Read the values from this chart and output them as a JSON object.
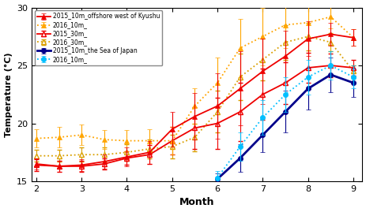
{
  "months_kyushu": [
    2.0,
    2.5,
    3.0,
    3.5,
    4.0,
    4.5,
    5.0,
    5.5,
    6.0,
    6.5,
    7.0,
    7.5,
    8.0,
    8.5,
    9.0
  ],
  "s2015_10m_kyushu": [
    16.5,
    16.3,
    16.4,
    16.7,
    17.1,
    17.5,
    19.5,
    20.6,
    21.5,
    23.0,
    24.5,
    25.8,
    27.3,
    27.7,
    27.4
  ],
  "s2015_10m_kyushu_err": [
    0.5,
    0.5,
    0.5,
    0.6,
    0.8,
    1.0,
    1.5,
    2.0,
    2.8,
    3.2,
    2.8,
    2.2,
    1.5,
    1.0,
    0.7
  ],
  "s2016_10m_kyushu": [
    18.7,
    18.8,
    19.0,
    18.6,
    18.5,
    18.5,
    18.5,
    21.5,
    23.5,
    26.5,
    27.5,
    28.5,
    28.7,
    29.2,
    27.4
  ],
  "s2016_10m_kyushu_err": [
    0.8,
    0.9,
    0.9,
    0.8,
    0.9,
    1.0,
    1.2,
    1.5,
    2.2,
    2.5,
    2.5,
    2.0,
    1.5,
    1.0,
    0.7
  ],
  "s2015_30m_kyushu": [
    16.4,
    16.3,
    16.3,
    16.5,
    17.0,
    17.3,
    18.5,
    19.6,
    20.0,
    21.0,
    22.5,
    23.5,
    24.8,
    25.0,
    24.8
  ],
  "s2015_30m_kyushu_err": [
    0.5,
    0.5,
    0.5,
    0.5,
    0.6,
    0.8,
    1.2,
    1.8,
    2.2,
    2.5,
    2.2,
    1.8,
    1.3,
    1.0,
    0.7
  ],
  "s2016_30m_kyushu": [
    17.2,
    17.2,
    17.3,
    17.3,
    17.5,
    17.8,
    18.0,
    18.8,
    21.0,
    24.0,
    25.5,
    27.0,
    27.5,
    27.0,
    24.5
  ],
  "s2016_30m_kyushu_err": [
    0.5,
    0.5,
    0.6,
    0.6,
    0.7,
    0.8,
    1.0,
    1.2,
    1.8,
    2.0,
    1.8,
    1.5,
    1.2,
    0.8,
    0.5
  ],
  "months_japan": [
    6.0,
    6.5,
    7.0,
    7.5,
    8.0,
    8.5,
    9.0
  ],
  "s2015_10m_japan": [
    15.2,
    17.0,
    19.0,
    21.0,
    23.0,
    24.2,
    23.5
  ],
  "s2015_10m_japan_err": [
    0.5,
    1.2,
    1.5,
    1.8,
    1.8,
    1.5,
    1.2
  ],
  "s2016_10m_japan": [
    15.3,
    18.0,
    20.5,
    22.5,
    24.0,
    25.0,
    24.0
  ],
  "s2016_10m_japan_err": [
    0.6,
    1.2,
    1.5,
    1.5,
    1.5,
    1.2,
    1.0
  ],
  "xlabel": "Month",
  "ylabel": "Temperature (°C)",
  "ylim": [
    15,
    30
  ],
  "xlim": [
    1.9,
    9.2
  ],
  "yticks": [
    15,
    20,
    25,
    30
  ],
  "xticks": [
    2,
    3,
    4,
    5,
    6,
    7,
    8,
    9
  ],
  "color_2015_kyushu_10m": "#EE0000",
  "color_2016_kyushu_10m": "#FFA500",
  "color_2015_kyushu_30m": "#EE0000",
  "color_2016_kyushu_30m": "#DAA000",
  "color_2015_japan_10m": "#00008B",
  "color_2016_japan_10m": "#00BFFF",
  "legend_labels": [
    "2015_10m_offshore west of Kyushu",
    "2016_10m_",
    "2015_30m_",
    "2016_30m_",
    "2015_10m_the Sea of Japan",
    "2016_10m_"
  ]
}
